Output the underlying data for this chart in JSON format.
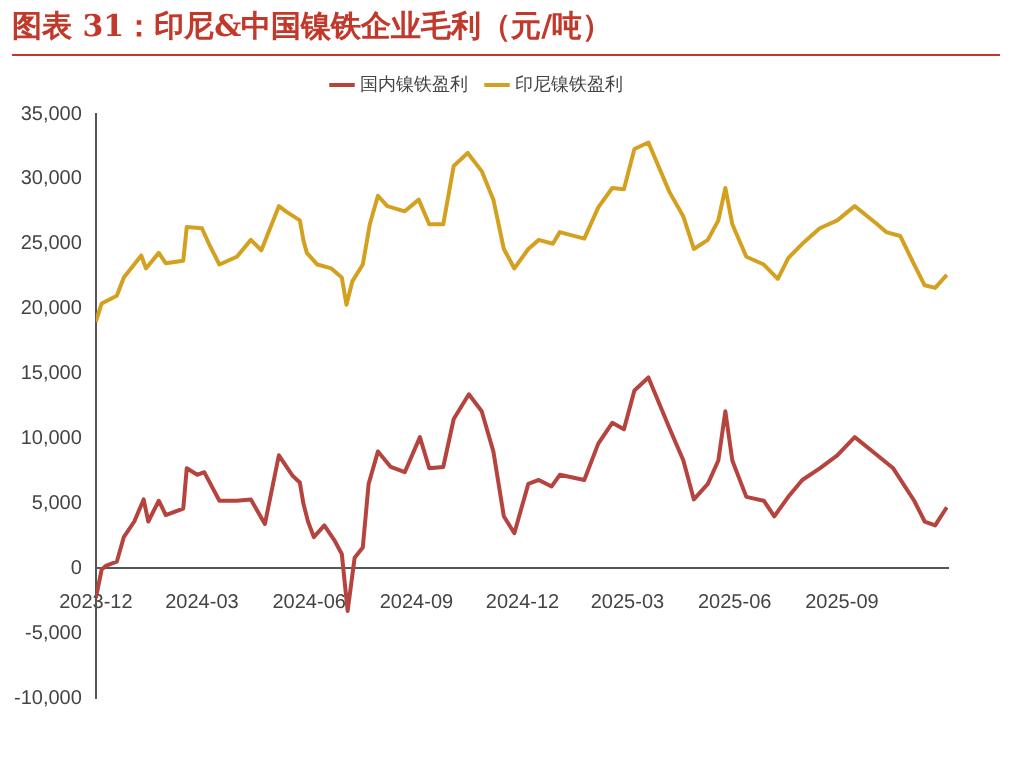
{
  "chart_data": {
    "type": "line",
    "title": "图表 31：印尼&中国镍铁企业毛利（元/吨）",
    "legend": "top",
    "grid": false,
    "marker": "none",
    "line_style": "solid",
    "xlim": [
      "2023-12-01",
      "2025-12-01"
    ],
    "xticks": [
      {
        "value": "2023-12-01",
        "label": "2023-12"
      },
      {
        "value": "2024-03-01",
        "label": "2024-03"
      },
      {
        "value": "2024-06-01",
        "label": "2024-06"
      },
      {
        "value": "2024-09-01",
        "label": "2024-09"
      },
      {
        "value": "2024-12-01",
        "label": "2024-12"
      },
      {
        "value": "2025-03-01",
        "label": "2025-03"
      },
      {
        "value": "2025-06-01",
        "label": "2025-06"
      },
      {
        "value": "2025-09-01",
        "label": "2025-09"
      }
    ],
    "ylim": [
      -10000,
      35000
    ],
    "yticks": [
      {
        "value": -10000,
        "label": "-10,000"
      },
      {
        "value": -5000,
        "label": "-5,000"
      },
      0,
      {
        "value": 5000,
        "label": "5,000"
      },
      {
        "value": 10000,
        "label": "10,000"
      },
      {
        "value": 15000,
        "label": "15,000"
      },
      {
        "value": 20000,
        "label": "20,000"
      },
      {
        "value": 25000,
        "label": "25,000"
      },
      {
        "value": 30000,
        "label": "30,000"
      },
      {
        "value": 35000,
        "label": "35,000"
      }
    ],
    "series": [
      {
        "name": "国内镍铁盈利",
        "color": "#b5443f",
        "x": [
          "2023-12-01",
          "2023-12-06",
          "2023-12-10",
          "2023-12-19",
          "2023-12-25",
          "2024-01-03",
          "2024-01-11",
          "2024-01-15",
          "2024-01-24",
          "2024-01-30",
          "2024-02-14",
          "2024-02-17",
          "2024-02-26",
          "2024-03-03",
          "2024-03-16",
          "2024-03-31",
          "2024-04-12",
          "2024-04-24",
          "2024-05-06",
          "2024-05-18",
          "2024-05-24",
          "2024-05-27",
          "2024-05-31",
          "2024-06-05",
          "2024-06-14",
          "2024-06-23",
          "2024-06-29",
          "2024-07-04",
          "2024-07-10",
          "2024-07-17",
          "2024-07-22",
          "2024-07-30",
          "2024-08-10",
          "2024-08-22",
          "2024-09-04",
          "2024-09-12",
          "2024-09-24",
          "2024-10-03",
          "2024-10-16",
          "2024-10-27",
          "2024-11-06",
          "2024-11-15",
          "2024-11-24",
          "2024-12-06",
          "2024-12-15",
          "2024-12-26",
          "2025-01-02",
          "2025-01-23",
          "2025-02-04",
          "2025-02-16",
          "2025-02-26",
          "2025-03-07",
          "2025-03-19",
          "2025-04-06",
          "2025-04-18",
          "2025-04-27",
          "2025-05-09",
          "2025-05-18",
          "2025-05-24",
          "2025-05-30",
          "2025-06-11",
          "2025-06-26",
          "2025-07-05",
          "2025-07-17",
          "2025-07-29",
          "2025-08-13",
          "2025-08-28",
          "2025-09-12",
          "2025-09-30",
          "2025-10-15",
          "2025-11-02",
          "2025-11-11",
          "2025-11-20",
          "2025-11-30"
        ],
        "values": [
          -2300,
          -100,
          200,
          500,
          2400,
          3600,
          5300,
          3600,
          5200,
          4100,
          4600,
          7700,
          7200,
          7400,
          5200,
          5200,
          5300,
          3400,
          8700,
          7100,
          6600,
          5000,
          3600,
          2400,
          3300,
          2100,
          1100,
          -3300,
          800,
          1600,
          6500,
          9000,
          7800,
          7400,
          10100,
          7700,
          7800,
          11500,
          13400,
          12100,
          9000,
          4000,
          2700,
          6500,
          6800,
          6300,
          7200,
          6800,
          9600,
          11200,
          10700,
          13700,
          14700,
          10800,
          8300,
          5300,
          6500,
          8300,
          12100,
          8300,
          5500,
          5200,
          4000,
          5500,
          6800,
          7700,
          8700,
          10100,
          8800,
          7700,
          5200,
          3600,
          3300,
          4700
        ]
      },
      {
        "name": "印尼镍铁盈利",
        "color": "#d4a020",
        "x": [
          "2023-12-01",
          "2023-12-06",
          "2023-12-19",
          "2023-12-25",
          "2024-01-09",
          "2024-01-13",
          "2024-01-24",
          "2024-01-30",
          "2024-02-14",
          "2024-02-17",
          "2024-03-01",
          "2024-03-07",
          "2024-03-16",
          "2024-03-31",
          "2024-04-12",
          "2024-04-21",
          "2024-05-06",
          "2024-05-12",
          "2024-05-24",
          "2024-05-27",
          "2024-05-30",
          "2024-06-08",
          "2024-06-20",
          "2024-06-29",
          "2024-07-03",
          "2024-07-08",
          "2024-07-17",
          "2024-07-23",
          "2024-07-30",
          "2024-08-07",
          "2024-08-22",
          "2024-09-03",
          "2024-09-12",
          "2024-09-24",
          "2024-10-03",
          "2024-10-15",
          "2024-10-27",
          "2024-11-06",
          "2024-11-15",
          "2024-11-24",
          "2024-12-06",
          "2024-12-15",
          "2024-12-27",
          "2025-01-02",
          "2025-01-23",
          "2025-02-04",
          "2025-02-16",
          "2025-02-26",
          "2025-03-07",
          "2025-03-19",
          "2025-04-06",
          "2025-04-18",
          "2025-04-27",
          "2025-05-09",
          "2025-05-18",
          "2025-05-24",
          "2025-05-30",
          "2025-06-11",
          "2025-06-26",
          "2025-07-08",
          "2025-07-17",
          "2025-07-29",
          "2025-08-13",
          "2025-08-28",
          "2025-09-12",
          "2025-09-30",
          "2025-10-09",
          "2025-10-21",
          "2025-11-02",
          "2025-11-11",
          "2025-11-20",
          "2025-11-30"
        ],
        "values": [
          19000,
          20400,
          21000,
          22400,
          24100,
          23100,
          24300,
          23500,
          23700,
          26300,
          26200,
          25000,
          23400,
          24000,
          25300,
          24500,
          27900,
          27500,
          26800,
          25300,
          24300,
          23400,
          23100,
          22400,
          20300,
          22100,
          23400,
          26500,
          28700,
          27900,
          27500,
          28400,
          26500,
          26500,
          31000,
          32000,
          30600,
          28400,
          24600,
          23100,
          24600,
          25300,
          25000,
          25900,
          25400,
          27800,
          29300,
          29200,
          32300,
          32800,
          29000,
          27100,
          24600,
          25300,
          26800,
          29300,
          26500,
          24000,
          23400,
          22300,
          23900,
          25000,
          26200,
          26800,
          27900,
          26600,
          25900,
          25600,
          23400,
          21800,
          21600,
          22600
        ]
      }
    ]
  }
}
